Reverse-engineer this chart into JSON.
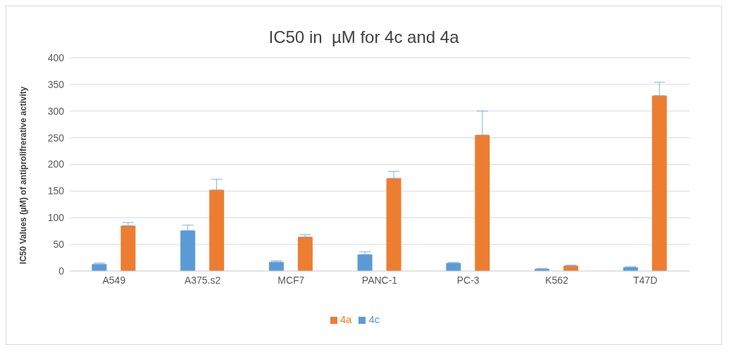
{
  "chart_data": {
    "type": "bar",
    "title": "IC50 in  µM for 4c and 4a",
    "ylabel": "IC50 Values (µM) of antiprolifrerative activity",
    "categories": [
      "A549",
      "A375.s2",
      "MCF7",
      "PANC-1",
      "PC-3",
      "K562",
      "T47D"
    ],
    "series": [
      {
        "name": "4c",
        "color": "#5b9bd5",
        "values": [
          13,
          76,
          17,
          31,
          15,
          4,
          7
        ],
        "errors": [
          [
            13,
            15
          ],
          [
            76,
            86
          ],
          [
            17,
            19
          ],
          [
            31,
            36
          ],
          [
            15,
            16
          ],
          [
            4,
            5
          ],
          [
            7,
            8
          ]
        ]
      },
      {
        "name": "4a",
        "color": "#ed7d31",
        "values": [
          85,
          152,
          64,
          174,
          255,
          10,
          329
        ],
        "errors": [
          [
            85,
            91
          ],
          [
            152,
            172
          ],
          [
            64,
            68
          ],
          [
            174,
            187
          ],
          [
            255,
            300
          ],
          [
            10,
            11
          ],
          [
            329,
            354
          ]
        ]
      }
    ],
    "ylim": [
      0,
      400
    ],
    "yticks": [
      0,
      50,
      100,
      150,
      200,
      250,
      300,
      350,
      400
    ],
    "grid": "y",
    "legend": "bottom"
  }
}
